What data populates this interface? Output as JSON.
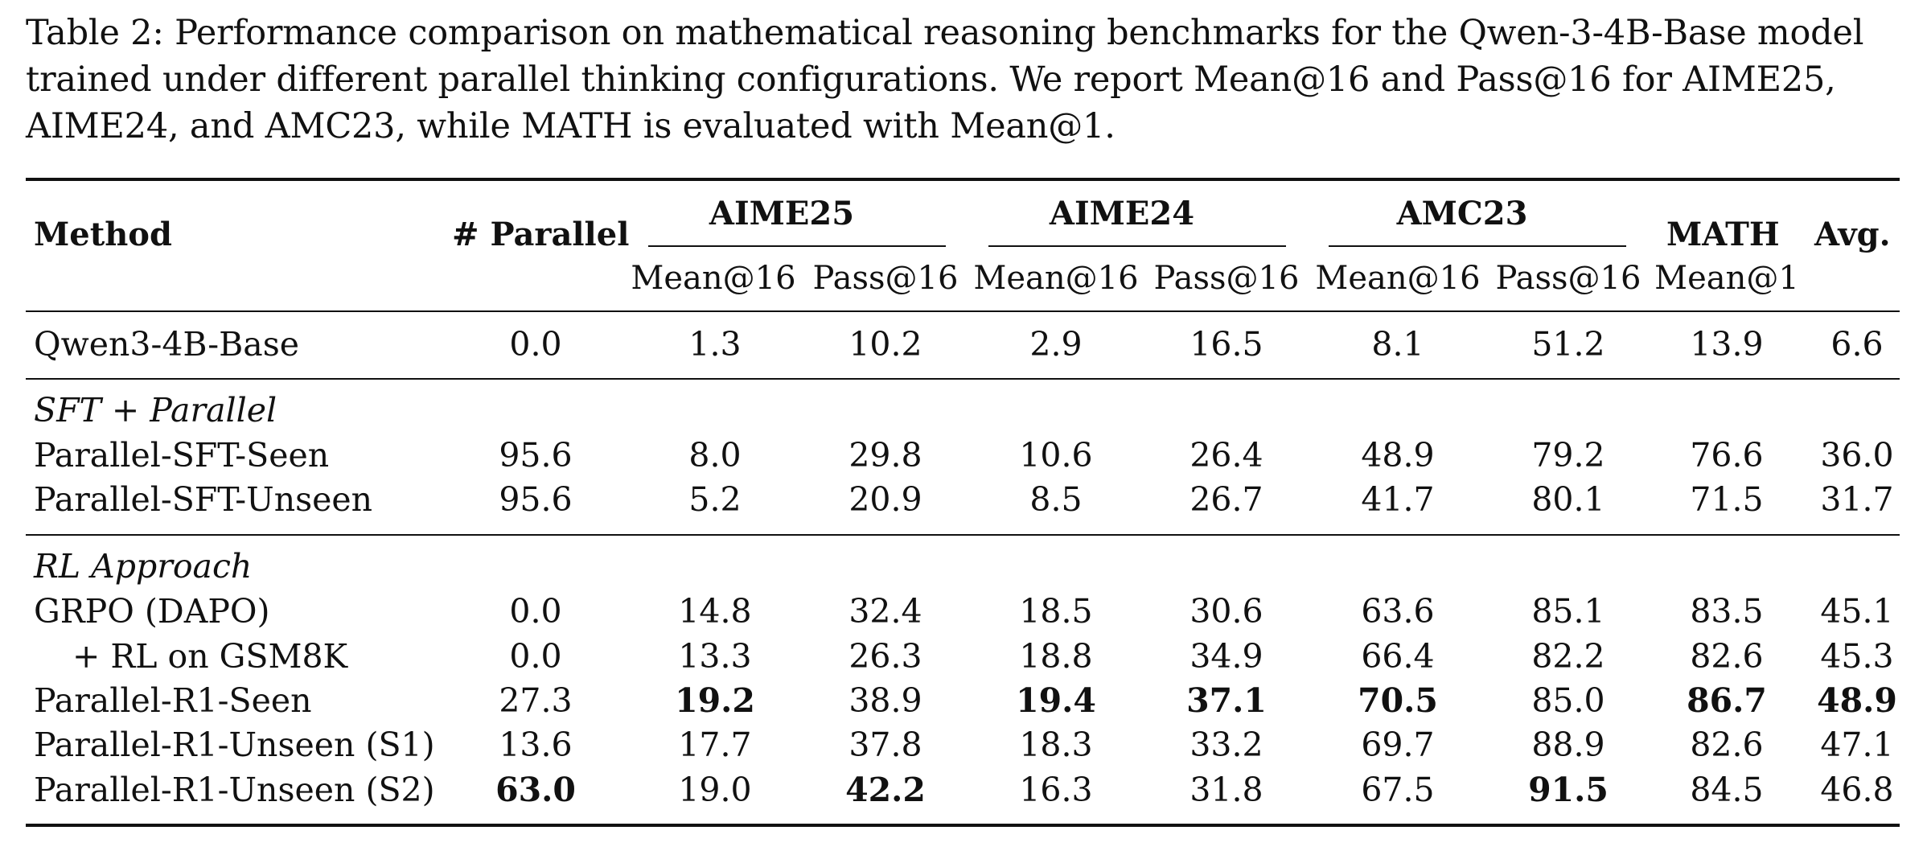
{
  "caption": "Table 2: Performance comparison on mathematical reasoning benchmarks for the Qwen-3-4B-Base model trained under different parallel thinking configurations. We report Mean@16 and Pass@16 for AIME25, AIME24, and AMC23, while MATH is evaluated with Mean@1.",
  "header": {
    "method": "Method",
    "parallel": "# Parallel",
    "groups": [
      "AIME25",
      "AIME24",
      "AMC23"
    ],
    "math": "MATH",
    "avg": "Avg.",
    "subs": [
      "Mean@16",
      "Pass@16",
      "Mean@16",
      "Pass@16",
      "Mean@16",
      "Pass@16",
      "Mean@1"
    ]
  },
  "base_row": {
    "method": "Qwen3-4B-Base",
    "values": [
      "0.0",
      "1.3",
      "10.2",
      "2.9",
      "16.5",
      "8.1",
      "51.2",
      "13.9",
      "6.6"
    ]
  },
  "sft_section": {
    "title": "SFT + Parallel",
    "rows": [
      {
        "method": "Parallel-SFT-Seen",
        "values": [
          "95.6",
          "8.0",
          "29.8",
          "10.6",
          "26.4",
          "48.9",
          "79.2",
          "76.6",
          "36.0"
        ]
      },
      {
        "method": "Parallel-SFT-Unseen",
        "values": [
          "95.6",
          "5.2",
          "20.9",
          "8.5",
          "26.7",
          "41.7",
          "80.1",
          "71.5",
          "31.7"
        ]
      }
    ]
  },
  "rl_section": {
    "title": "RL Approach",
    "rows": [
      {
        "method": "GRPO (DAPO)",
        "values": [
          "0.0",
          "14.8",
          "32.4",
          "18.5",
          "30.6",
          "63.6",
          "85.1",
          "83.5",
          "45.1"
        ]
      },
      {
        "method": "+ RL on GSM8K",
        "values": [
          "0.0",
          "13.3",
          "26.3",
          "18.8",
          "34.9",
          "66.4",
          "82.2",
          "82.6",
          "45.3"
        ]
      },
      {
        "method": "Parallel-R1-Seen",
        "values": [
          "27.3",
          "19.2",
          "38.9",
          "19.4",
          "37.1",
          "70.5",
          "85.0",
          "86.7",
          "48.9"
        ]
      },
      {
        "method": "Parallel-R1-Unseen (S1)",
        "values": [
          "13.6",
          "17.7",
          "37.8",
          "18.3",
          "33.2",
          "69.7",
          "88.9",
          "82.6",
          "47.1"
        ]
      },
      {
        "method": "Parallel-R1-Unseen (S2)",
        "values": [
          "63.0",
          "19.0",
          "42.2",
          "16.3",
          "31.8",
          "67.5",
          "91.5",
          "84.5",
          "46.8"
        ]
      }
    ]
  }
}
